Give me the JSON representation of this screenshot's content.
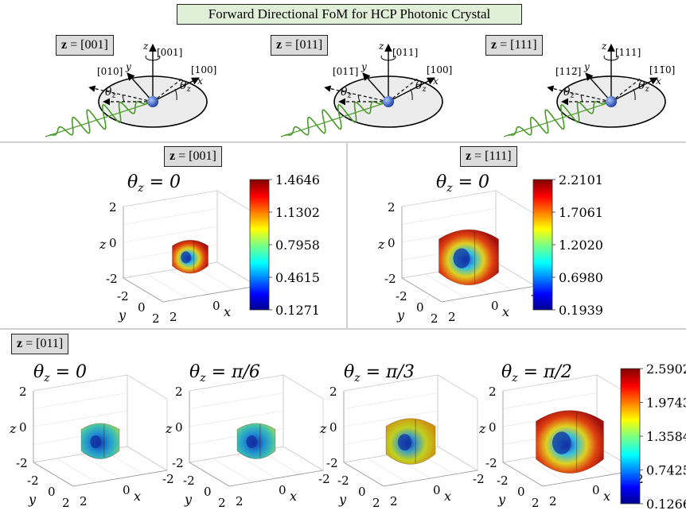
{
  "title": "Forward Directional FoM for HCP Photonic Crystal",
  "zbox_prefix": "z",
  "diagrams": [
    {
      "z_dir": "[001]",
      "axis_z_label": "[001]",
      "axis_x_label": "[100]",
      "axis_y_label": "[010]"
    },
    {
      "z_dir": "[011]",
      "axis_z_label": "[011]",
      "axis_x_label": "[100]",
      "axis_y_label": "[011̅]"
    },
    {
      "z_dir": "[111]",
      "axis_z_label": "[111]",
      "axis_x_label": "[11̅0]",
      "axis_y_label": "[112̅]"
    }
  ],
  "axis_letters": {
    "x": "x",
    "y": "y",
    "z": "z",
    "theta": "θ",
    "theta_sub": "z"
  },
  "panels": [
    {
      "z_dir": "[001]",
      "theta": "= 0",
      "colorbar_ticks": [
        "1.4646",
        "1.1302",
        "0.7958",
        "0.4615",
        "0.1271"
      ],
      "size": 0.45,
      "tint": "warm"
    },
    {
      "z_dir": "[111]",
      "theta": "= 0",
      "colorbar_ticks": [
        "2.2101",
        "1.7061",
        "1.2020",
        "0.6980",
        "0.1939"
      ],
      "size": 0.75,
      "tint": "warm"
    },
    {
      "z_dir": "[011]",
      "theta": "= 0",
      "size": 0.48,
      "tint": "cool"
    },
    {
      "theta": "= π/6",
      "size": 0.48,
      "tint": "cool"
    },
    {
      "theta": "= π/3",
      "size": 0.62,
      "tint": "mid"
    },
    {
      "theta": "= π/2",
      "size": 0.85,
      "tint": "warm"
    }
  ],
  "bottom_colorbar_ticks": [
    "2.5902",
    "1.9743",
    "1.3584",
    "0.7425",
    "0.1266"
  ],
  "plot_axis_ticks": {
    "z": [
      "2",
      "0",
      "-2"
    ],
    "y": [
      "-2",
      "0",
      "2"
    ],
    "x": [
      "2",
      "0",
      "-2"
    ]
  },
  "colors": {
    "title_bg": "#e0f0d8",
    "zbox_bg": "#dcdcdc",
    "wave": "#4a9a2a",
    "disk": "#ececec"
  }
}
